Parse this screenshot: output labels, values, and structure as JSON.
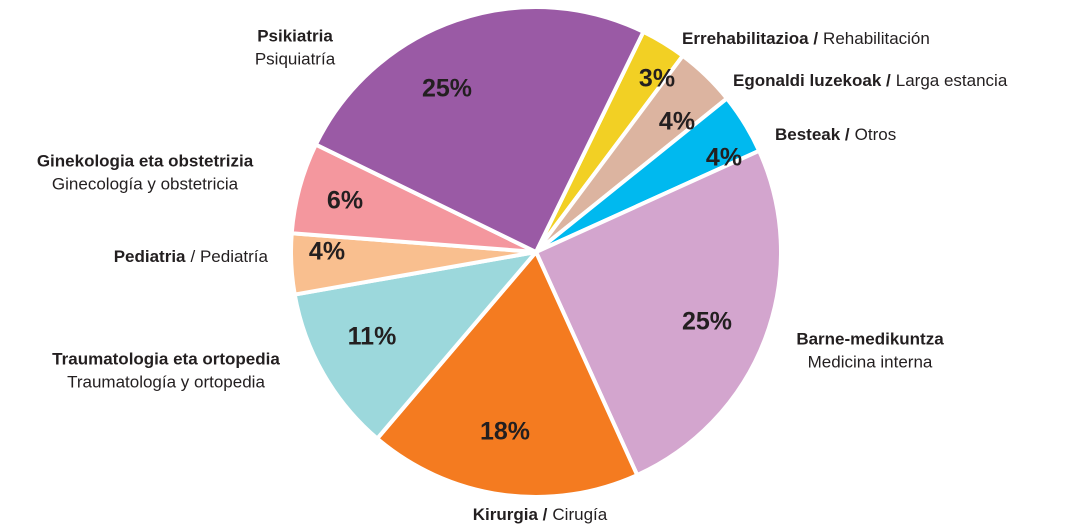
{
  "chart_data": {
    "type": "pie",
    "categories": [
      "Errehabilitazioa /",
      "Egonaldi luzekoak /",
      "Besteak /",
      "Barne-medikuntza",
      "Kirurgia /",
      "Traumatologia eta ortopedia",
      "Pediatria",
      "Ginekologia eta obstetrizia",
      "Psikiatria"
    ],
    "translations": [
      "Rehabilitación",
      "Larga estancia",
      "Otros",
      "Medicina interna",
      "Cirugía",
      "Traumatología y ortopedia",
      "/ Pediatría",
      "Ginecología y obstetricia",
      "Psiquiatría"
    ],
    "values": [
      3,
      4,
      4,
      25,
      18,
      11,
      4,
      6,
      25
    ],
    "value_labels": [
      "3%",
      "4%",
      "4%",
      "25%",
      "18%",
      "11%",
      "4%",
      "6%",
      "25%"
    ],
    "colors": [
      "#f2d024",
      "#dcb4a0",
      "#00b9ef",
      "#d3a5ce",
      "#f47b20",
      "#9cd8dc",
      "#f9bf8f",
      "#f4979e",
      "#9a5aa5"
    ]
  }
}
